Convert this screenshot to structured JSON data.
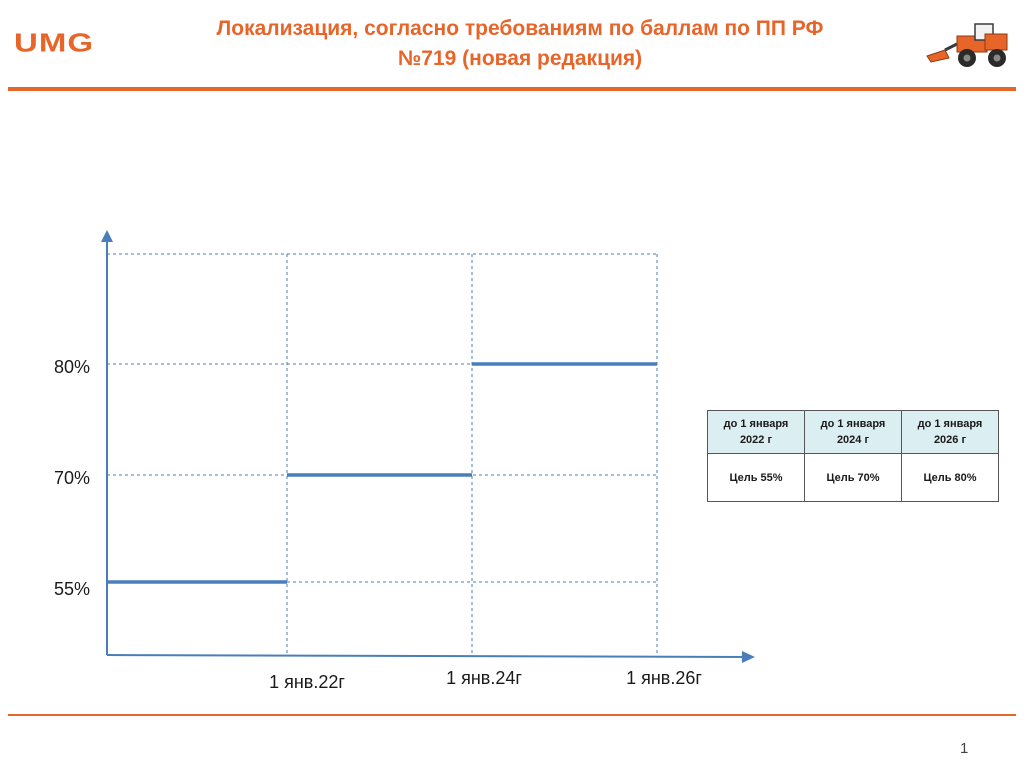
{
  "header": {
    "logo_text": "UMG",
    "title_line1": "Локализация, согласно требованиям по баллам по ПП РФ",
    "title_line2": "№719 (новая редакция)",
    "logo_image": "wheel-loader-icon"
  },
  "footer": {
    "page_number": "1"
  },
  "colors": {
    "accent": "#e8652a",
    "series": "#4a7ebb",
    "grid": "#4a7ebb",
    "table_header_bg": "#dbeef2"
  },
  "chart_data": {
    "type": "line",
    "title": "",
    "xlabel": "",
    "ylabel": "",
    "x_ticks": [
      "1 янв.22г",
      "1 янв.24г",
      "1 янв.26г"
    ],
    "y_ticks": [
      "55%",
      "70%",
      "80%"
    ],
    "grid": true,
    "series": [
      {
        "shape": "step",
        "segments": [
          {
            "from": "start",
            "to": "1 янв.22г",
            "y": 55
          },
          {
            "from": "1 янв.22г",
            "to": "1 янв.24г",
            "y": 70
          },
          {
            "from": "1 янв.24г",
            "to": "1 янв.26г",
            "y": 80
          }
        ]
      }
    ],
    "legend": "none"
  },
  "table": {
    "headers": [
      "до 1 января 2022 г",
      "до 1 января 2024 г",
      "до 1 января 2026 г"
    ],
    "values": [
      "Цель 55%",
      "Цель 70%",
      "Цель 80%"
    ]
  }
}
